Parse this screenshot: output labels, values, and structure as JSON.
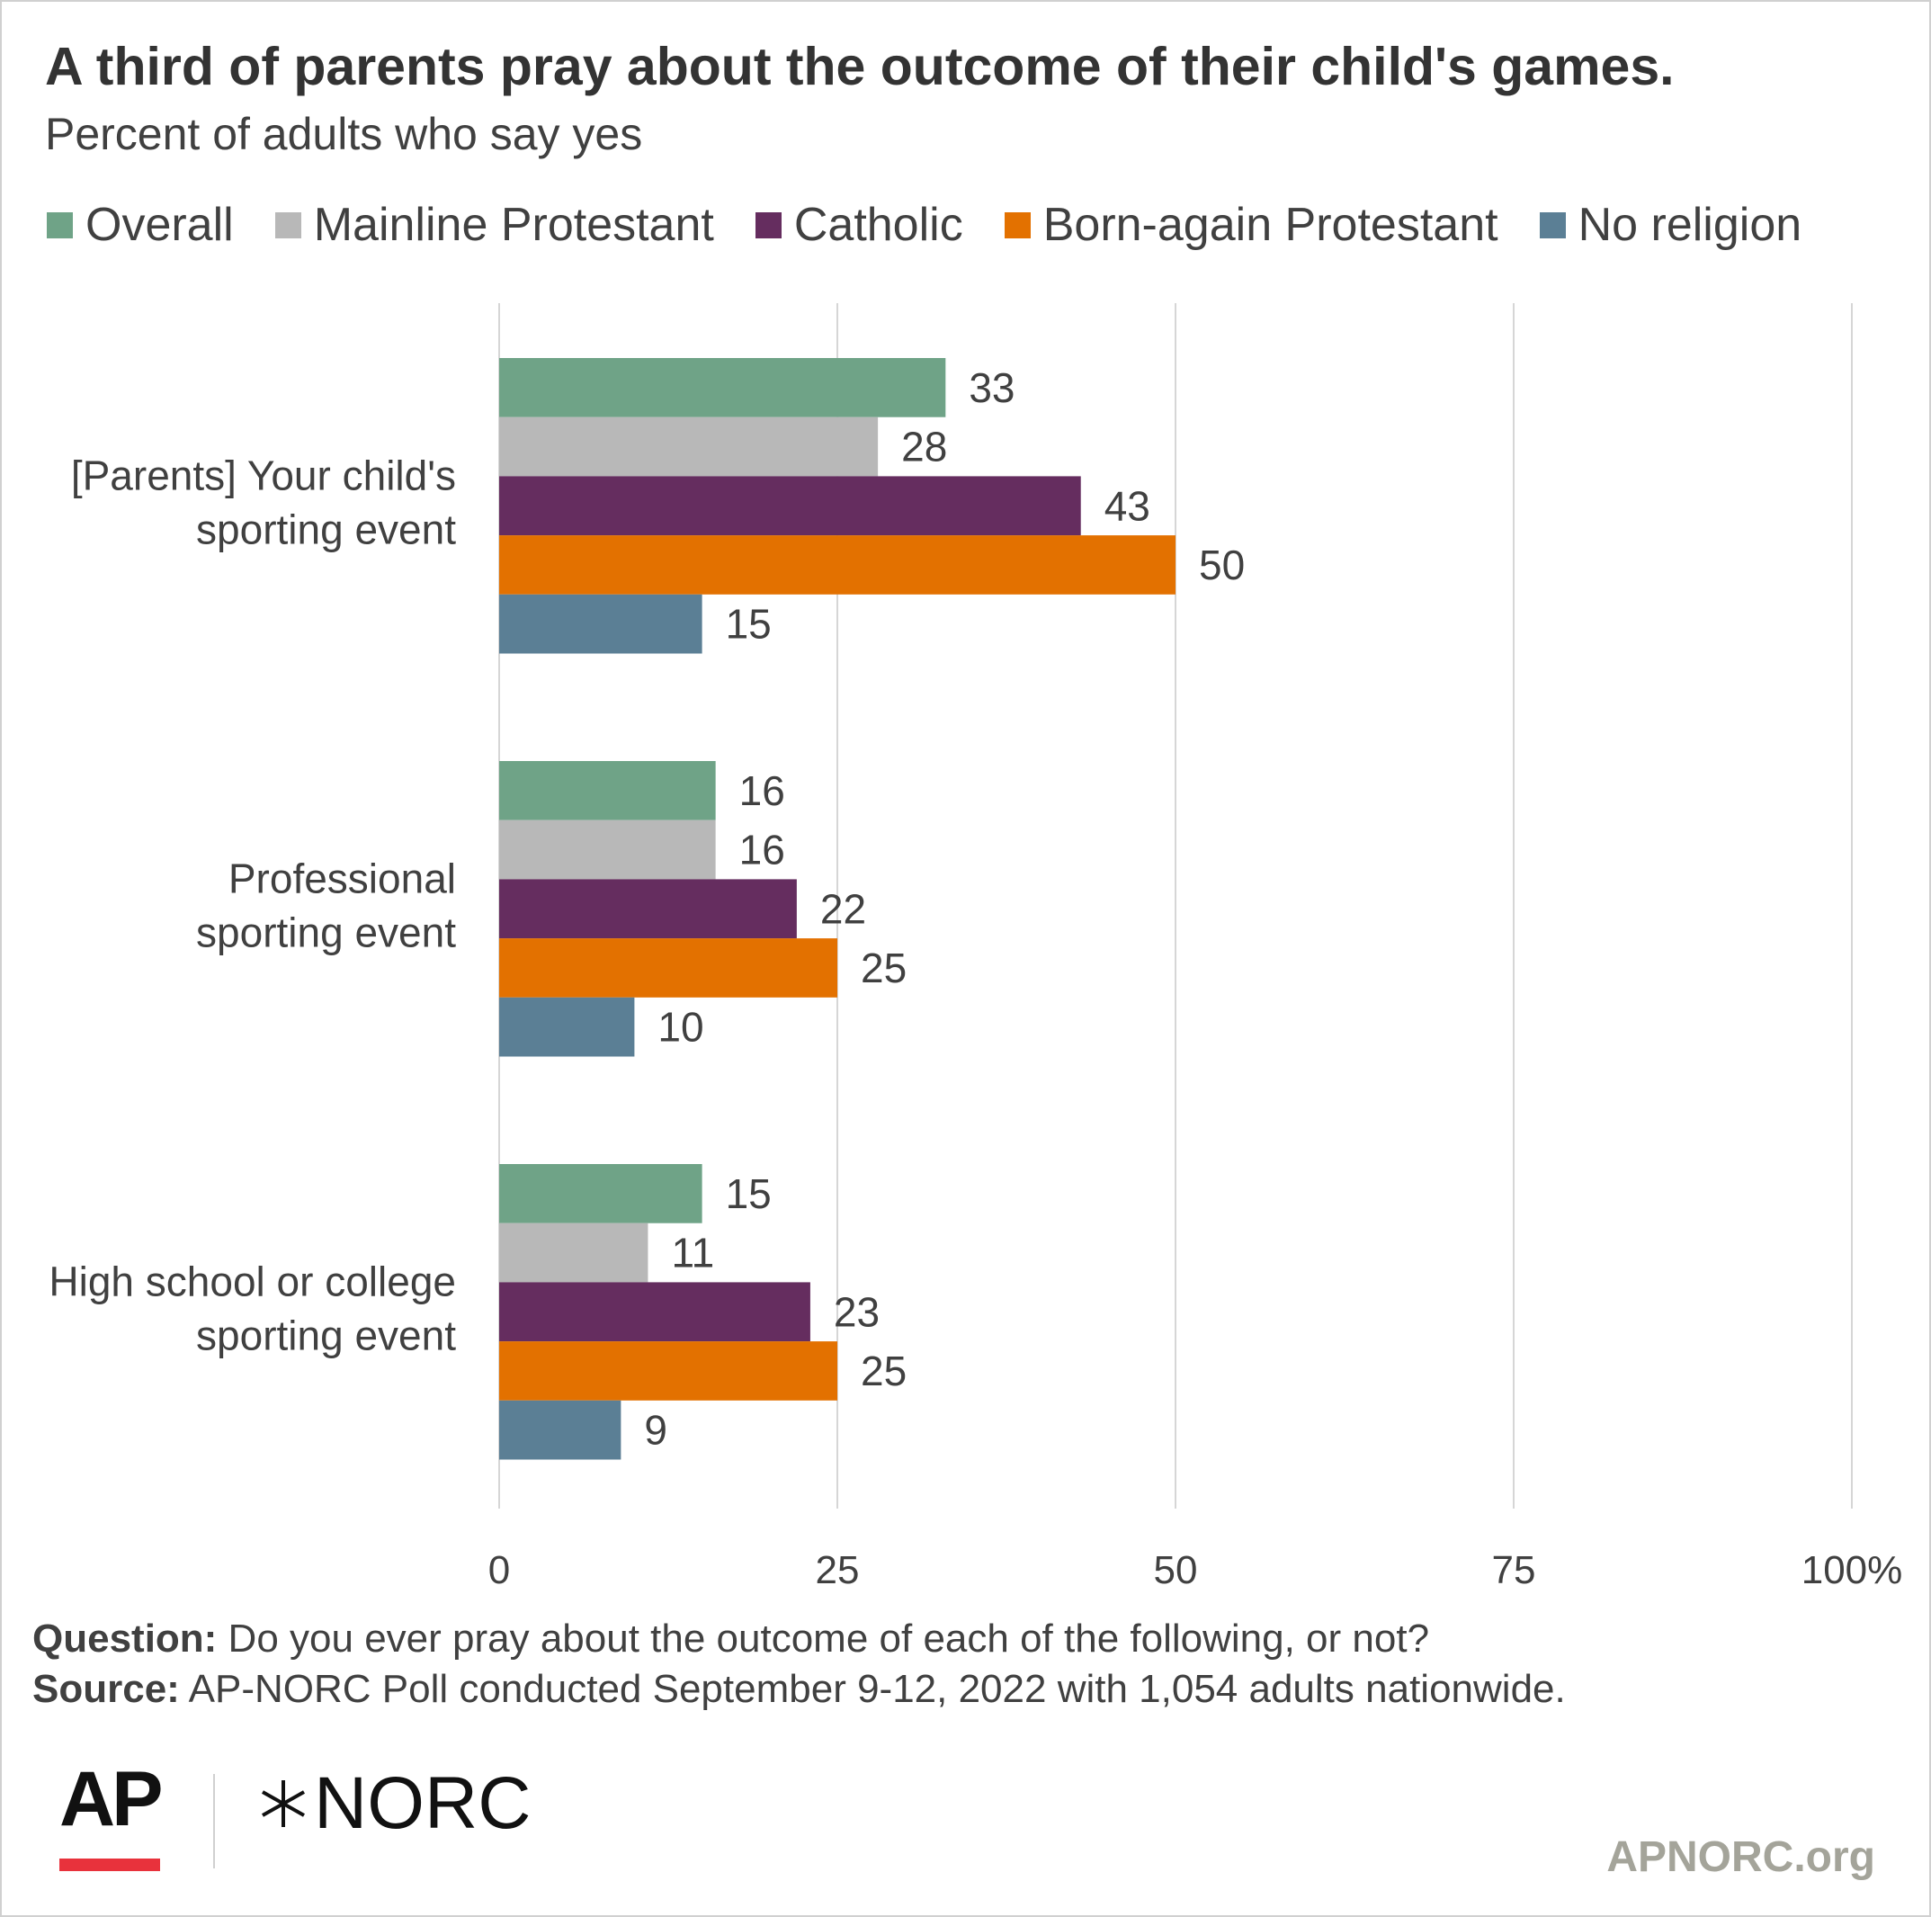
{
  "chart_data": {
    "type": "bar",
    "orientation": "horizontal",
    "title": "A third of parents pray about the outcome of their child's games.",
    "subtitle": "Percent of adults who say yes",
    "categories": [
      [
        "[Parents] Your child's",
        "sporting event"
      ],
      [
        "Professional",
        "sporting event"
      ],
      [
        "High school or college",
        "sporting event"
      ]
    ],
    "series": [
      {
        "name": "Overall",
        "color": "#6fa387",
        "values": [
          33,
          16,
          15
        ]
      },
      {
        "name": "Mainline Protestant",
        "color": "#b8b8b8",
        "values": [
          28,
          16,
          11
        ]
      },
      {
        "name": "Catholic",
        "color": "#652d5f",
        "values": [
          43,
          22,
          23
        ]
      },
      {
        "name": "Born-again Protestant",
        "color": "#e37100",
        "values": [
          50,
          25,
          25
        ]
      },
      {
        "name": "No religion",
        "color": "#5b7f95",
        "values": [
          15,
          10,
          9
        ]
      }
    ],
    "xlim": [
      0,
      100
    ],
    "xticks": [
      "0",
      "25",
      "50",
      "75",
      "100%"
    ],
    "xtick_values": [
      0,
      25,
      50,
      75,
      100
    ],
    "grid": true,
    "legend_position": "top",
    "data_labels": true
  },
  "footer": {
    "question_label": "Question:",
    "question_text": " Do you ever pray about the outcome of each of the following, or not?",
    "source_label": "Source:",
    "source_text": "  AP-NORC Poll conducted September 9-12, 2022 with 1,054 adults nationwide."
  },
  "logos": {
    "ap": "AP",
    "ap_accent_color": "#e8323c",
    "norc": "NORC",
    "site": "APNORC.org"
  }
}
